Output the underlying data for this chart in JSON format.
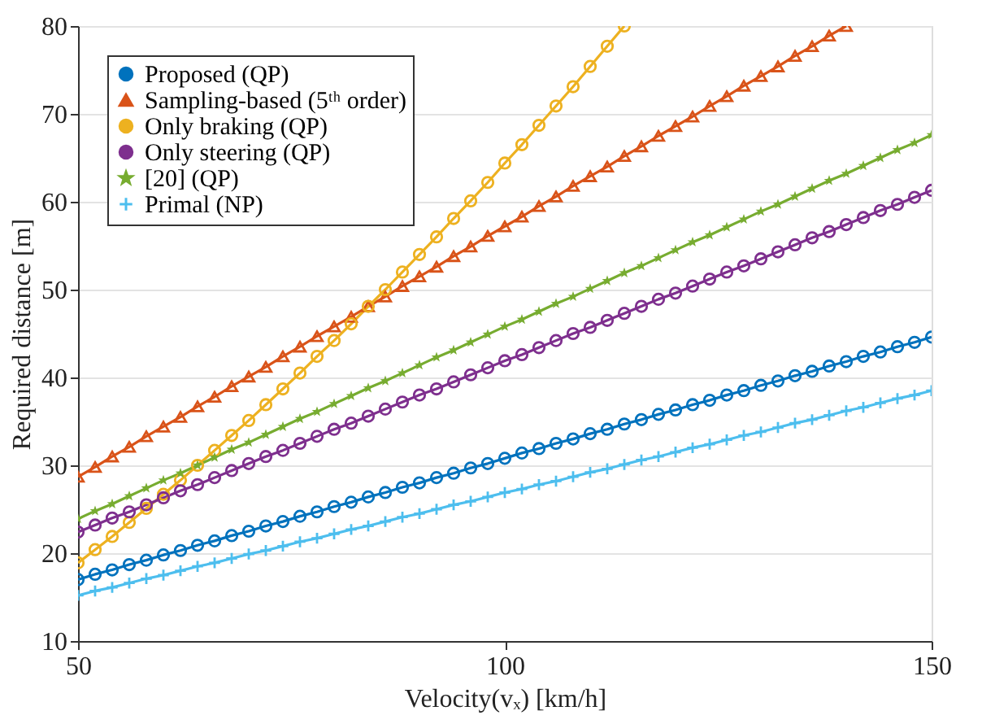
{
  "chart_data": {
    "type": "line",
    "xlabel": "Velocity(vₓ) [km/h]",
    "ylabel": "Required distance [m]",
    "x": [
      50,
      52,
      54,
      56,
      58,
      60,
      62,
      64,
      66,
      68,
      70,
      72,
      74,
      76,
      78,
      80,
      82,
      84,
      86,
      88,
      90,
      92,
      94,
      96,
      98,
      100,
      102,
      104,
      106,
      108,
      110,
      112,
      114,
      116,
      118,
      120,
      122,
      124,
      126,
      128,
      130,
      132,
      134,
      136,
      138,
      140,
      142,
      144,
      146,
      148,
      150
    ],
    "xlim": [
      50,
      150
    ],
    "xticks": [
      50,
      100,
      150
    ],
    "ylim": [
      10,
      80
    ],
    "yticks": [
      10,
      20,
      30,
      40,
      50,
      60,
      70,
      80
    ],
    "grid": "y",
    "legend": "top left",
    "line_style": "solid",
    "series": [
      {
        "name": "Proposed (QP)",
        "color": "#0072bd",
        "marker": "circle",
        "values": [
          17.0,
          17.6,
          18.1,
          18.7,
          19.2,
          19.8,
          20.3,
          20.9,
          21.4,
          22.0,
          22.5,
          23.1,
          23.6,
          24.2,
          24.7,
          25.3,
          25.8,
          26.4,
          26.9,
          27.5,
          28.0,
          28.6,
          29.1,
          29.7,
          30.2,
          30.8,
          31.4,
          31.9,
          32.5,
          33.0,
          33.6,
          34.1,
          34.7,
          35.2,
          35.8,
          36.3,
          36.9,
          37.4,
          38.0,
          38.5,
          39.1,
          39.6,
          40.2,
          40.7,
          41.3,
          41.8,
          42.4,
          42.9,
          43.5,
          44.0,
          44.6
        ]
      },
      {
        "name": "Sampling-based (5ᵗʰ order)",
        "color": "#d95319",
        "marker": "triangle",
        "values": [
          28.7,
          29.8,
          31.0,
          32.1,
          33.3,
          34.4,
          35.5,
          36.7,
          37.8,
          39.0,
          40.1,
          41.2,
          42.4,
          43.5,
          44.7,
          45.8,
          46.9,
          48.1,
          49.2,
          50.4,
          51.5,
          52.6,
          53.8,
          54.9,
          56.1,
          57.2,
          58.3,
          59.5,
          60.6,
          61.8,
          62.9,
          64.0,
          65.2,
          66.3,
          67.5,
          68.6,
          69.7,
          70.9,
          72.0,
          73.2,
          74.3,
          75.4,
          76.6,
          77.7,
          78.9,
          80.0,
          null,
          null,
          null,
          null,
          null
        ]
      },
      {
        "name": "Only braking (QP)",
        "color": "#edb120",
        "marker": "circle",
        "values": [
          18.9,
          20.4,
          21.9,
          23.5,
          25.1,
          26.7,
          28.3,
          30.0,
          31.7,
          33.4,
          35.1,
          36.9,
          38.7,
          40.5,
          42.4,
          44.2,
          46.1,
          48.1,
          50.0,
          52.0,
          54.0,
          56.0,
          58.1,
          60.1,
          62.2,
          64.4,
          66.5,
          68.7,
          70.9,
          73.1,
          75.4,
          77.7,
          80.0,
          null,
          null,
          null,
          null,
          null,
          null,
          null,
          null,
          null,
          null,
          null,
          null,
          null,
          null,
          null,
          null,
          null,
          null
        ]
      },
      {
        "name": "Only steering (QP)",
        "color": "#7e2f8e",
        "marker": "circle",
        "values": [
          22.4,
          23.2,
          24.0,
          24.7,
          25.5,
          26.3,
          27.1,
          27.8,
          28.6,
          29.4,
          30.2,
          31.0,
          31.7,
          32.5,
          33.3,
          34.1,
          34.8,
          35.6,
          36.4,
          37.2,
          38.0,
          38.7,
          39.5,
          40.3,
          41.1,
          41.9,
          42.6,
          43.4,
          44.2,
          45.0,
          45.7,
          46.5,
          47.3,
          48.1,
          48.9,
          49.6,
          50.4,
          51.2,
          52.0,
          52.7,
          53.5,
          54.3,
          55.1,
          55.9,
          56.6,
          57.4,
          58.2,
          59.0,
          59.7,
          60.5,
          61.3
        ]
      },
      {
        "name": "[20] (QP)",
        "color": "#77ac30",
        "marker": "star",
        "values": [
          23.9,
          24.8,
          25.6,
          26.5,
          27.4,
          28.3,
          29.1,
          30.0,
          30.9,
          31.8,
          32.6,
          33.5,
          34.4,
          35.3,
          36.1,
          37.0,
          37.9,
          38.8,
          39.6,
          40.5,
          41.4,
          42.3,
          43.1,
          44.0,
          44.9,
          45.8,
          46.6,
          47.5,
          48.4,
          49.2,
          50.1,
          51.0,
          51.9,
          52.7,
          53.6,
          54.5,
          55.4,
          56.2,
          57.1,
          58.0,
          58.9,
          59.7,
          60.6,
          61.5,
          62.4,
          63.2,
          64.1,
          65.0,
          65.9,
          66.7,
          67.6
        ]
      },
      {
        "name": "Primal (NP)",
        "color": "#4dbeee",
        "marker": "cross",
        "values": [
          15.2,
          15.7,
          16.1,
          16.6,
          17.1,
          17.5,
          18.0,
          18.5,
          18.9,
          19.4,
          19.9,
          20.3,
          20.8,
          21.3,
          21.7,
          22.2,
          22.7,
          23.1,
          23.6,
          24.1,
          24.5,
          25.0,
          25.5,
          25.9,
          26.4,
          26.9,
          27.3,
          27.8,
          28.2,
          28.7,
          29.2,
          29.6,
          30.1,
          30.6,
          31.0,
          31.5,
          32.0,
          32.4,
          32.9,
          33.4,
          33.8,
          34.3,
          34.8,
          35.2,
          35.7,
          36.2,
          36.6,
          37.1,
          37.6,
          38.0,
          38.5
        ]
      }
    ]
  }
}
